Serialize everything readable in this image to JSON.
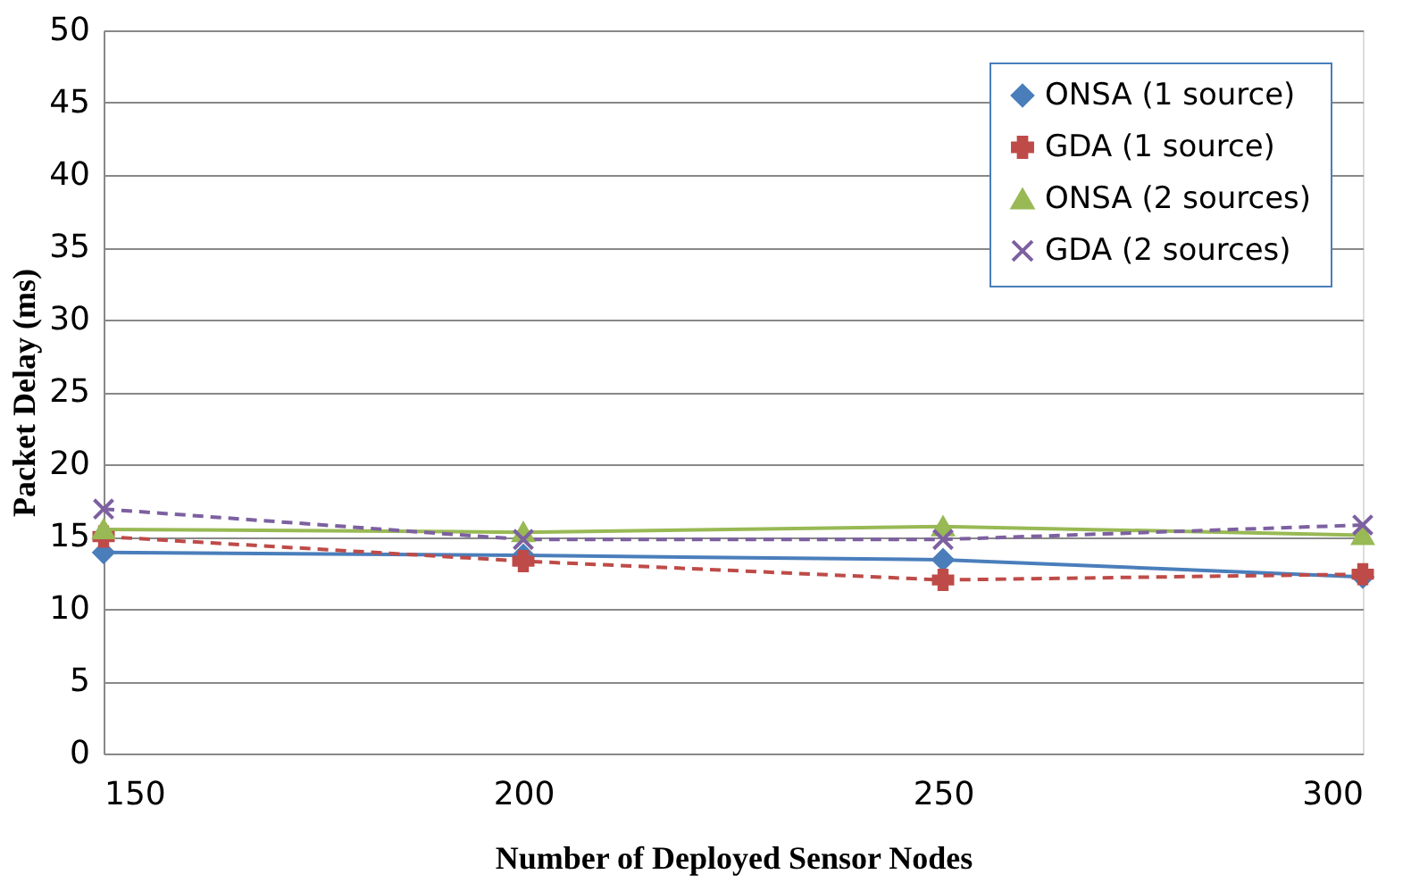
{
  "chart_data": {
    "type": "line",
    "xlabel": "Number of Deployed Sensor Nodes",
    "ylabel": "Packet Delay (ms)",
    "x": [
      150,
      200,
      250,
      300
    ],
    "xlim": [
      150,
      300
    ],
    "xticks": [
      150,
      200,
      250,
      300
    ],
    "ylim": [
      0,
      50
    ],
    "yticks": [
      0,
      5,
      10,
      15,
      20,
      25,
      30,
      35,
      40,
      45,
      50
    ],
    "grid": "y",
    "legend": "top right",
    "series": [
      {
        "name": "ONSA (1 source)",
        "color": "#4a7ebb",
        "values": [
          13.9,
          13.7,
          13.4,
          12.2
        ],
        "marker": "diamond",
        "line_style": "solid"
      },
      {
        "name": "GDA (1 source)",
        "color": "#be4b48",
        "values": [
          15.0,
          13.3,
          12.0,
          12.4
        ],
        "marker": "plus",
        "line_style": "dashed"
      },
      {
        "name": "ONSA (2 sources)",
        "color": "#98b954",
        "values": [
          15.5,
          15.3,
          15.7,
          15.1
        ],
        "marker": "triangle",
        "line_style": "solid"
      },
      {
        "name": "GDA (2 sources)",
        "color": "#7d60a0",
        "values": [
          16.9,
          14.8,
          14.8,
          15.8
        ],
        "marker": "cross",
        "line_style": "dashed"
      }
    ]
  }
}
